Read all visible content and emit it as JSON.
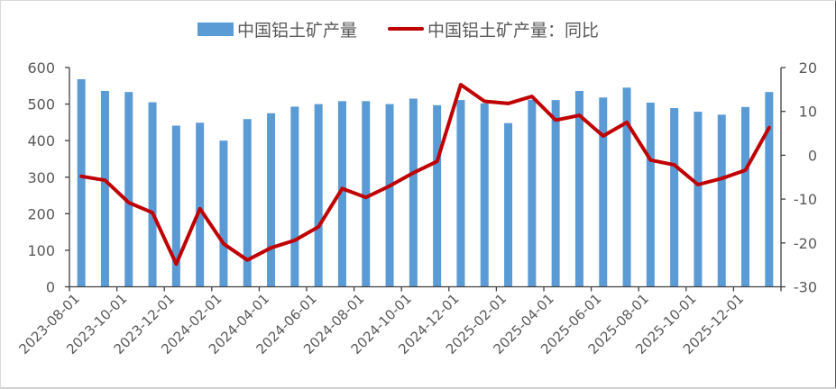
{
  "legend": {
    "bar_label": "中国铝土矿产量",
    "line_label": "中国铝土矿产量：同比"
  },
  "colors": {
    "bar": "#5b9bd5",
    "line": "#c00000",
    "axis": "#404040",
    "text": "#595959"
  },
  "chart_data": {
    "type": "bar+line",
    "title": "",
    "categories": [
      "2023-08-01",
      "2023-09-01",
      "2023-10-01",
      "2023-11-01",
      "2023-12-01",
      "2024-01-01",
      "2024-02-01",
      "2024-03-01",
      "2024-04-01",
      "2024-05-01",
      "2024-06-01",
      "2024-07-01",
      "2024-08-01",
      "2024-09-01",
      "2024-10-01",
      "2024-11-01",
      "2024-12-01",
      "2025-01-01",
      "2025-02-01",
      "2025-03-01",
      "2025-04-01",
      "2025-05-01",
      "2025-06-01",
      "2025-07-01",
      "2025-08-01",
      "2025-09-01",
      "2025-10-01",
      "2025-11-01",
      "2025-12-01",
      "2026-01-01"
    ],
    "x_tick_labels": [
      "2023-08-01",
      "2023-10-01",
      "2023-12-01",
      "2024-02-01",
      "2024-04-01",
      "2024-06-01",
      "2024-08-01",
      "2024-10-01",
      "2024-12-01",
      "2025-02-01",
      "2025-04-01",
      "2025-06-01",
      "2025-08-01",
      "2025-10-01",
      "2025-12-01"
    ],
    "series": [
      {
        "name": "中国铝土矿产量",
        "type": "bar",
        "axis": "left",
        "values": [
          568,
          536,
          533,
          505,
          441,
          449,
          400,
          459,
          475,
          493,
          500,
          508,
          508,
          500,
          515,
          497,
          511,
          502,
          448,
          512,
          511,
          536,
          518,
          545,
          504,
          489,
          479,
          471,
          492,
          533
        ]
      },
      {
        "name": "中国铝土矿产量：同比",
        "type": "line",
        "axis": "right",
        "values": [
          -4.8,
          -5.7,
          -10.8,
          -13.1,
          -24.8,
          -12.2,
          -20.2,
          -23.9,
          -21.1,
          -19.4,
          -16.3,
          -7.6,
          -9.6,
          -7.0,
          -4.0,
          -1.4,
          16.1,
          12.3,
          11.8,
          13.4,
          8.0,
          9.1,
          4.4,
          7.5,
          -1.1,
          -2.2,
          -6.7,
          -5.3,
          -3.4,
          6.3
        ]
      }
    ],
    "left_axis": {
      "ylim": [
        0,
        600
      ],
      "ticks": [
        "0",
        "100",
        "200",
        "300",
        "400",
        "500",
        "600"
      ]
    },
    "right_axis": {
      "ylim": [
        -30,
        20
      ],
      "ticks": [
        "-30",
        "-20",
        "-10",
        "0",
        "10",
        "20"
      ]
    },
    "xlabel": "",
    "ylabel": "",
    "grid": false,
    "legend_position": "top"
  }
}
